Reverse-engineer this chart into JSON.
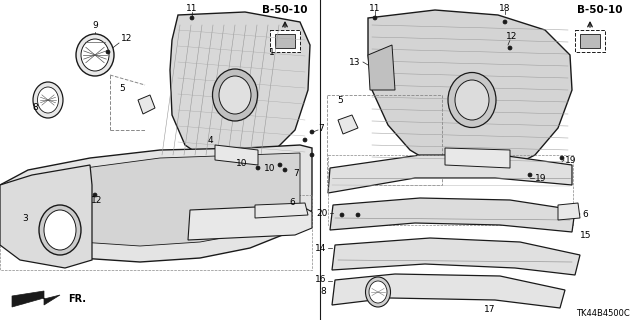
{
  "background_color": "#ffffff",
  "part_number": "TK44B4500C",
  "fr_label": "FR.",
  "b50_10_label": "B-50-10",
  "line_color": "#1a1a1a",
  "gray_fill": "#cccccc",
  "light_fill": "#e8e8e8",
  "white_fill": "#ffffff"
}
